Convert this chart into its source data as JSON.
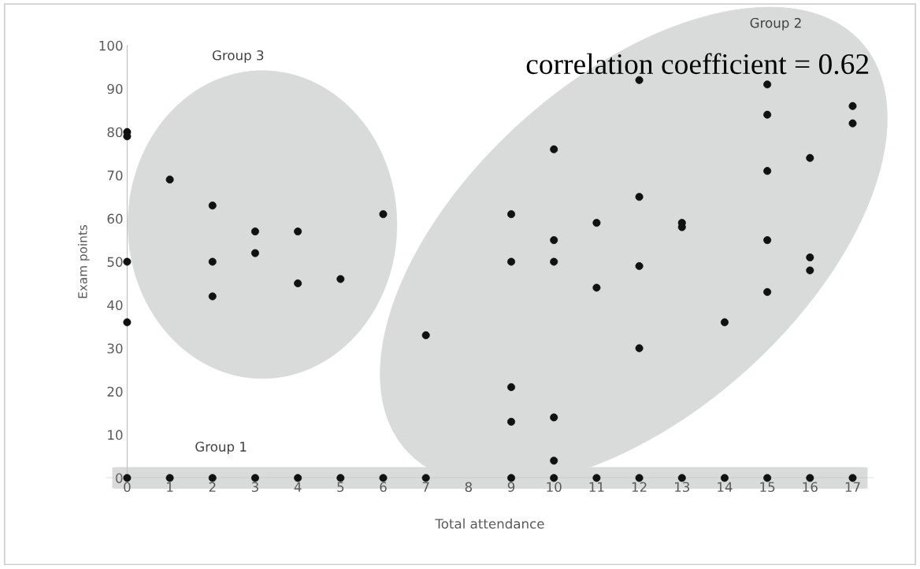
{
  "chart_data": {
    "type": "scatter",
    "xlabel": "Total attendance",
    "ylabel": "Exam points",
    "x": [
      0,
      0,
      0,
      0,
      0,
      1,
      1,
      2,
      2,
      2,
      2,
      3,
      3,
      3,
      4,
      4,
      4,
      5,
      5,
      6,
      6,
      7,
      7,
      9,
      9,
      9,
      9,
      9,
      10,
      10,
      10,
      10,
      10,
      10,
      11,
      11,
      11,
      12,
      12,
      12,
      12,
      12,
      13,
      13,
      13,
      14,
      14,
      15,
      15,
      15,
      15,
      15,
      15,
      16,
      16,
      16,
      16,
      17,
      17,
      17
    ],
    "values": [
      80,
      79,
      50,
      36,
      0,
      69,
      0,
      63,
      50,
      42,
      0,
      57,
      52,
      0,
      57,
      45,
      0,
      46,
      0,
      61,
      0,
      33,
      0,
      61,
      50,
      21,
      13,
      0,
      76,
      55,
      50,
      14,
      4,
      0,
      59,
      44,
      0,
      92,
      65,
      49,
      30,
      0,
      59,
      58,
      0,
      36,
      0,
      91,
      84,
      71,
      55,
      43,
      0,
      74,
      51,
      48,
      0,
      86,
      82,
      0
    ],
    "color": "#111111",
    "marker": "circle",
    "xlim": [
      -0.5,
      17.5
    ],
    "xticks": [
      0,
      1,
      2,
      3,
      4,
      5,
      6,
      7,
      8,
      9,
      10,
      11,
      12,
      13,
      14,
      15,
      16,
      17
    ],
    "ylim": [
      0,
      100
    ],
    "yticks": [
      0,
      10,
      20,
      30,
      40,
      50,
      60,
      70,
      80,
      90,
      100
    ],
    "grid": false,
    "legend": false,
    "annotations": [
      "Group 3",
      "Group 2",
      "Group 1",
      "correlation coefficient = 0.62"
    ]
  }
}
